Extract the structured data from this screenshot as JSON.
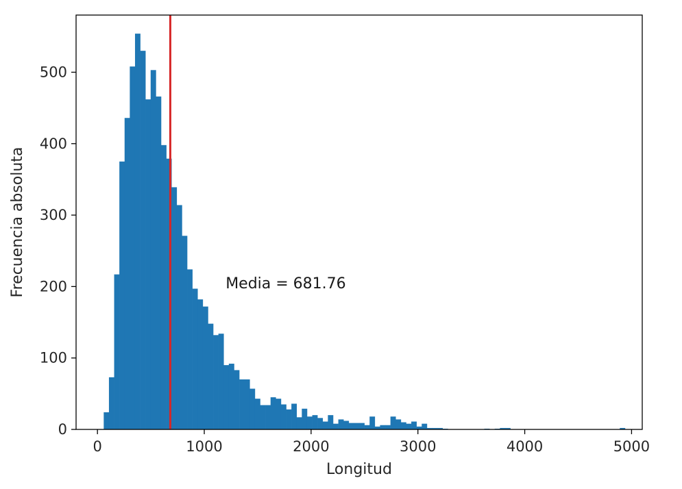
{
  "chart_data": {
    "type": "bar",
    "subtype": "histogram",
    "title": "",
    "xlabel": "Longitud",
    "ylabel": "Frecuencia absoluta",
    "xlim": [
      -200,
      5100
    ],
    "ylim": [
      0,
      580
    ],
    "x_ticks": [
      0,
      1000,
      2000,
      3000,
      4000,
      5000
    ],
    "y_ticks": [
      0,
      100,
      200,
      300,
      400,
      500
    ],
    "grid": false,
    "bar_color": "#1f77b4",
    "bin_width": 48.8,
    "bin_start": 10,
    "values": [
      0,
      24,
      73,
      217,
      375,
      436,
      508,
      554,
      530,
      462,
      503,
      466,
      398,
      379,
      339,
      314,
      271,
      224,
      197,
      182,
      172,
      148,
      132,
      134,
      90,
      92,
      83,
      70,
      70,
      57,
      43,
      34,
      34,
      45,
      43,
      35,
      28,
      36,
      17,
      29,
      18,
      20,
      16,
      11,
      20,
      8,
      14,
      12,
      9,
      9,
      9,
      6,
      18,
      4,
      6,
      6,
      18,
      14,
      10,
      8,
      11,
      4,
      8,
      2,
      2,
      2,
      1,
      0,
      0,
      0,
      0,
      0,
      0,
      0,
      1,
      0,
      1,
      2,
      2,
      0,
      0,
      0,
      0,
      0,
      0,
      0,
      0,
      0,
      0,
      0,
      0,
      0,
      0,
      0,
      0,
      0,
      0,
      0,
      0,
      0,
      2
    ],
    "mean_line": {
      "value": 681.76,
      "color": "#d62728"
    },
    "annotation": {
      "text": "Media = 681.76",
      "x": 1200,
      "y": 205
    }
  }
}
